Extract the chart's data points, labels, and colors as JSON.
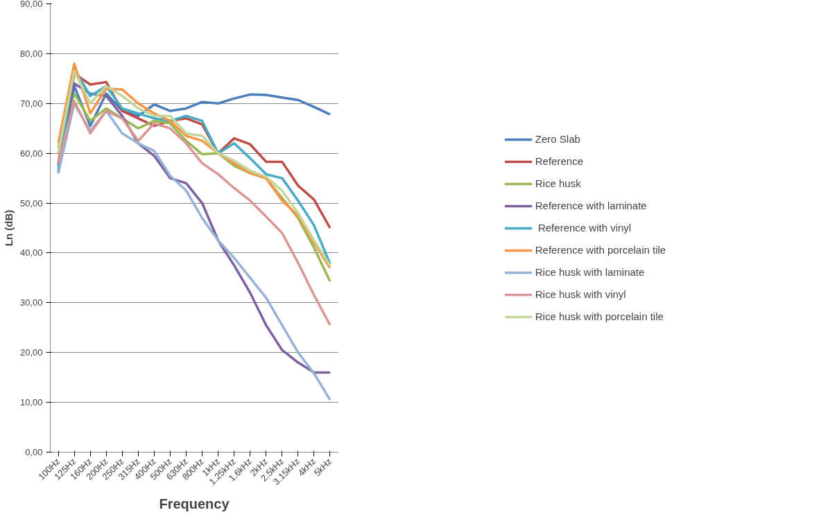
{
  "chart_data": {
    "type": "line",
    "xlabel": "Frequency",
    "ylabel": "Ln (dB)",
    "categories": [
      "100Hz",
      "125Hz",
      "160Hz",
      "200Hz",
      "250Hz",
      "315Hz",
      "400Hz",
      "500Hz",
      "630Hz",
      "800Hz",
      "1kHz",
      "1.25kHz",
      "1.6kHz",
      "2kHz",
      "2.5kHz",
      "3.15kHz",
      "4kHz",
      "5kHz"
    ],
    "ylim": [
      0,
      90
    ],
    "yticks": [
      {
        "value": 0,
        "label": "0,00"
      },
      {
        "value": 10,
        "label": "10,00"
      },
      {
        "value": 20,
        "label": "20,00"
      },
      {
        "value": 30,
        "label": "30,00"
      },
      {
        "value": 40,
        "label": "40,00"
      },
      {
        "value": 50,
        "label": "50,00"
      },
      {
        "value": 60,
        "label": "60,00"
      },
      {
        "value": 70,
        "label": "70,00"
      },
      {
        "value": 80,
        "label": "80,00"
      },
      {
        "value": 90,
        "label": "90,00"
      }
    ],
    "grid": "y",
    "legend": "right",
    "marker": "none",
    "line_style": "solid",
    "series": [
      {
        "name": "Zero Slab",
        "color": "#4a7ebb",
        "values": [
          56,
          73.5,
          65.5,
          72,
          68.5,
          67.5,
          69.8,
          68.5,
          69,
          70.3,
          70,
          71,
          71.8,
          71.7,
          71.2,
          70.7,
          69.3,
          67.8
        ]
      },
      {
        "name": "Reference",
        "color": "#be4b48",
        "values": [
          58,
          76,
          73.8,
          74.3,
          68.5,
          67,
          65.5,
          66.5,
          67,
          65.8,
          60,
          63,
          61.8,
          58.3,
          58.3,
          53.5,
          50.7,
          45
        ]
      },
      {
        "name": "Rice husk",
        "color": "#98b954",
        "values": [
          61,
          72,
          66.5,
          69,
          67,
          65,
          66.5,
          66,
          62.5,
          59.8,
          60,
          57.5,
          56,
          55,
          51,
          47,
          41,
          34.3
        ]
      },
      {
        "name": "Reference with laminate",
        "color": "#7d60a0",
        "values": [
          57.5,
          74,
          72,
          71.5,
          67.5,
          62,
          59.5,
          55,
          54,
          50,
          42.5,
          37.5,
          32,
          25.5,
          20.5,
          18,
          16,
          16
        ]
      },
      {
        "name": " Reference with vinyl",
        "color": "#46aac5",
        "values": [
          56.5,
          77,
          71.5,
          73.5,
          69,
          68,
          67,
          66.5,
          67.5,
          66.5,
          60,
          62,
          59,
          55.8,
          55,
          50.5,
          45.5,
          37.8
        ]
      },
      {
        "name": "Reference with porcelain tile",
        "color": "#f79646",
        "values": [
          62,
          78,
          68,
          73,
          72.8,
          70,
          68,
          66.5,
          63.5,
          62.5,
          60,
          58,
          56,
          55,
          50.5,
          47.5,
          42,
          37
        ]
      },
      {
        "name": "Rice husk with laminate",
        "color": "#95b3d7",
        "values": [
          56,
          70,
          64.5,
          68.5,
          64,
          62,
          60.5,
          55.5,
          52.5,
          47,
          42.5,
          39,
          35,
          31,
          25.5,
          20,
          15.8,
          10.5
        ]
      },
      {
        "name": "Rice husk with vinyl",
        "color": "#d99694",
        "values": [
          58,
          70.5,
          64,
          68.5,
          67,
          62.5,
          66,
          65,
          62,
          58,
          55.8,
          53,
          50.5,
          47.3,
          44,
          38,
          31.5,
          25.5
        ]
      },
      {
        "name": "Rice husk with porcelain tile",
        "color": "#c3d69b",
        "values": [
          60,
          76.5,
          70,
          73.5,
          71.5,
          69,
          67.5,
          67.5,
          64,
          63.5,
          60,
          58.5,
          56.5,
          55.3,
          52.5,
          48,
          42.5,
          37.5
        ]
      }
    ]
  }
}
